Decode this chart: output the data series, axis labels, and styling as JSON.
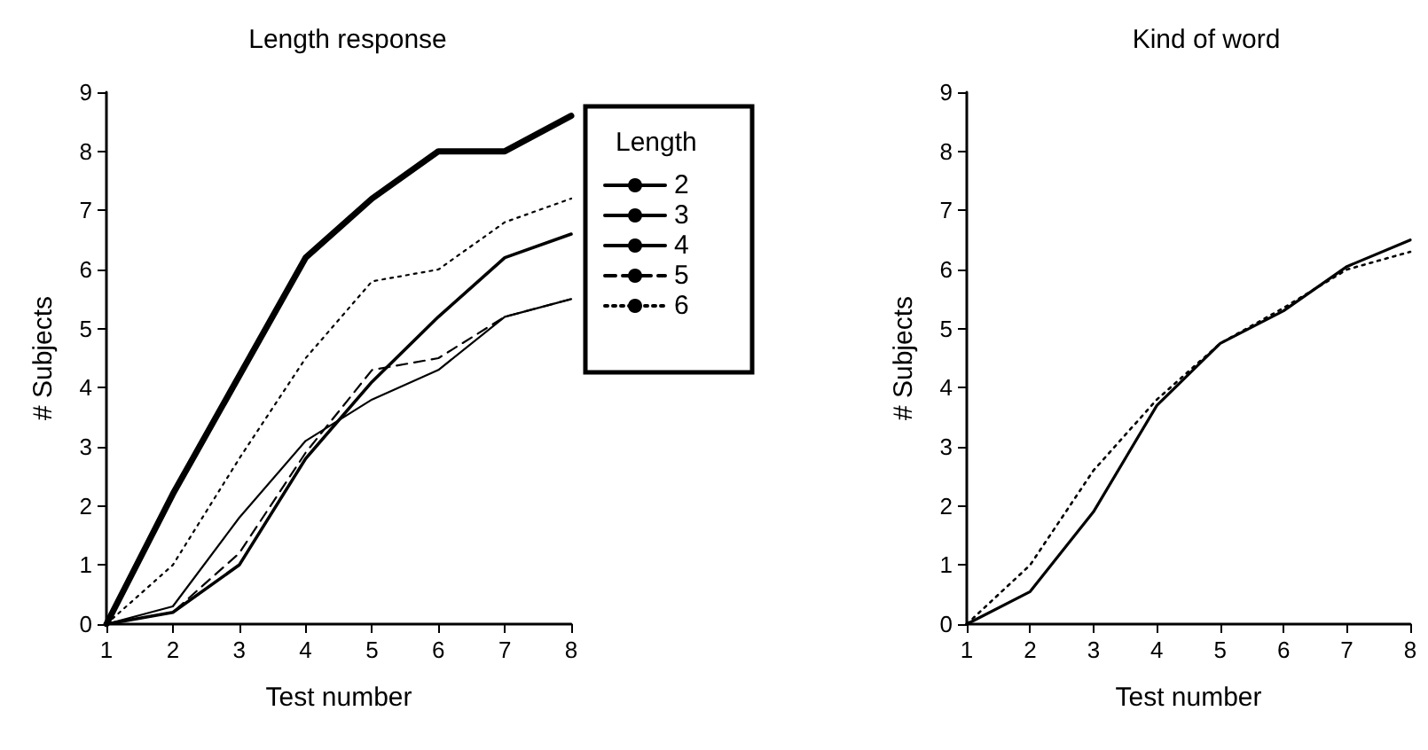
{
  "chart_data": [
    {
      "type": "line",
      "title": "Length response",
      "xlabel": "Test number",
      "ylabel": "# Subjects",
      "legend_title": "Length",
      "legend": "right",
      "marker": "none",
      "x": [
        1,
        2,
        3,
        4,
        5,
        6,
        7,
        8
      ],
      "xlim": [
        1,
        8
      ],
      "xticks": [
        1,
        2,
        3,
        4,
        5,
        6,
        7,
        8
      ],
      "ylim": [
        0,
        9
      ],
      "yticks": [
        0,
        1,
        2,
        3,
        4,
        5,
        6,
        7,
        8,
        9
      ],
      "grid": false,
      "series": [
        {
          "name": "2",
          "color": "#000000",
          "line_style": "solid",
          "values": [
            0,
            2.2,
            4.2,
            6.2,
            7.2,
            8,
            8,
            8.6
          ]
        },
        {
          "name": "3",
          "color": "#000000",
          "line_style": "solid",
          "values": [
            0,
            0.2,
            1.0,
            2.8,
            4.1,
            5.2,
            6.2,
            6.6
          ]
        },
        {
          "name": "4",
          "color": "#000000",
          "line_style": "solid",
          "values": [
            0,
            0.3,
            1.8,
            3.1,
            3.8,
            4.3,
            5.2,
            5.5
          ]
        },
        {
          "name": "5",
          "color": "#000000",
          "line_style": "dashed",
          "values": [
            0,
            0.2,
            1.2,
            2.9,
            4.3,
            4.5,
            5.2,
            5.5
          ]
        },
        {
          "name": "6",
          "color": "#000000",
          "line_style": "dotted",
          "values": [
            0,
            1.0,
            2.8,
            4.5,
            5.8,
            6.0,
            6.8,
            7.2
          ]
        }
      ]
    },
    {
      "type": "line",
      "title": "Kind of word",
      "xlabel": "Test number",
      "ylabel": "# Subjects",
      "legend": false,
      "marker": "none",
      "x": [
        1,
        2,
        3,
        4,
        5,
        6,
        7,
        8
      ],
      "xlim": [
        1,
        8
      ],
      "xticks": [
        1,
        2,
        3,
        4,
        5,
        6,
        7,
        8
      ],
      "ylim": [
        0,
        9
      ],
      "yticks": [
        0,
        1,
        2,
        3,
        4,
        5,
        6,
        7,
        8,
        9
      ],
      "grid": false,
      "series": [
        {
          "color": "#000000",
          "line_style": "solid",
          "values": [
            0,
            0.55,
            1.9,
            3.7,
            4.75,
            5.3,
            6.05,
            6.5
          ]
        },
        {
          "color": "#000000",
          "line_style": "dotted",
          "values": [
            0,
            1.0,
            2.6,
            3.8,
            4.75,
            5.35,
            6.0,
            6.3
          ]
        }
      ]
    }
  ]
}
